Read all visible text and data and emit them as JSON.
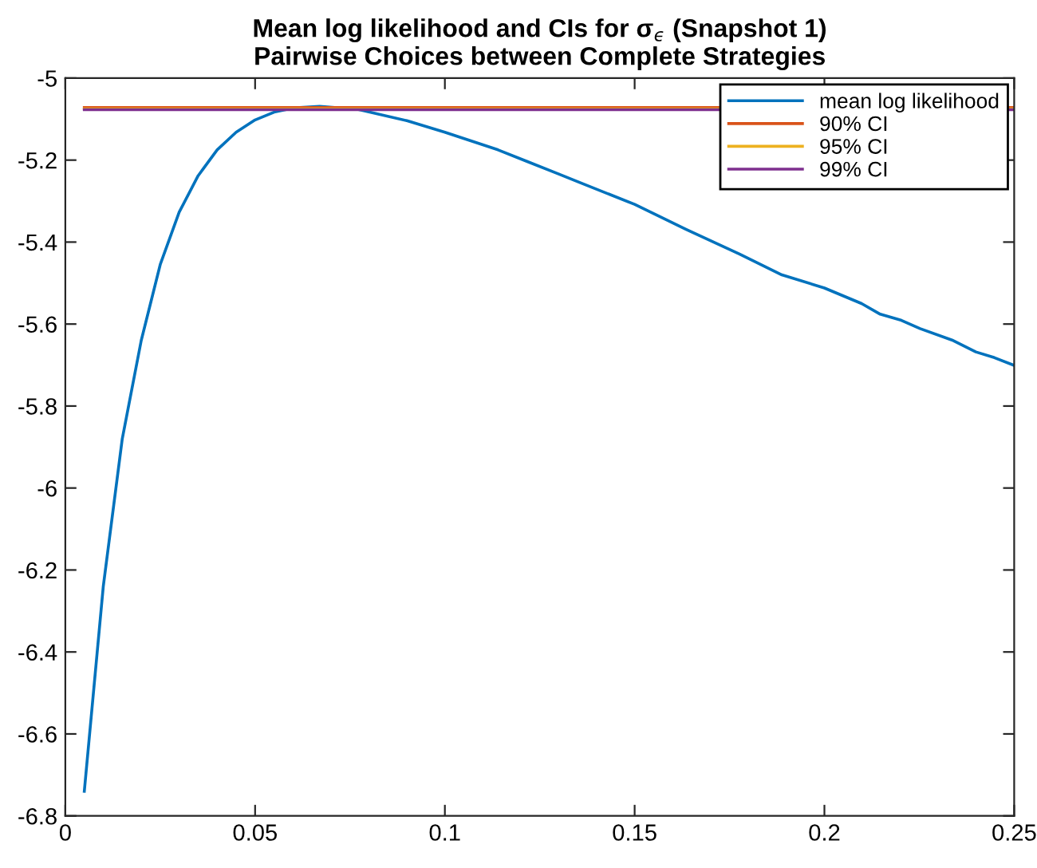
{
  "chart_data": {
    "type": "line",
    "title": "Mean log likelihood and CIs for σ$_{ϵ}$ (Snapshot 1)\nPairwise Choices between Complete Strategies",
    "xlim": [
      0,
      0.25
    ],
    "xticks": [
      0,
      0.05,
      0.1,
      0.15,
      0.2,
      0.25
    ],
    "ylim": [
      -6.8,
      -5
    ],
    "yticks": [
      -6.8,
      -6.6,
      -6.4,
      -6.2,
      -6,
      -5.8,
      -5.6,
      -5.4,
      -5.2,
      -5
    ],
    "grid": false,
    "legend": "top right",
    "series": [
      {
        "name": "mean log likelihood",
        "color": "#0072bd",
        "x": [
          0.005,
          0.01,
          0.015,
          0.02,
          0.025,
          0.03,
          0.035,
          0.04,
          0.045,
          0.05,
          0.055,
          0.06,
          0.067,
          0.077,
          0.09,
          0.1,
          0.114,
          0.1216,
          0.13,
          0.1356,
          0.15,
          0.1636,
          0.1776,
          0.1888,
          0.2,
          0.2098,
          0.2147,
          0.2203,
          0.2252,
          0.2336,
          0.2399,
          0.2448,
          0.25
        ],
        "values": [
          -6.74,
          -6.24,
          -5.88,
          -5.64,
          -5.455,
          -5.327,
          -5.238,
          -5.175,
          -5.132,
          -5.102,
          -5.083,
          -5.073,
          -5.069,
          -5.076,
          -5.104,
          -5.132,
          -5.175,
          -5.203,
          -5.234,
          -5.255,
          -5.308,
          -5.369,
          -5.429,
          -5.48,
          -5.512,
          -5.55,
          -5.576,
          -5.591,
          -5.611,
          -5.639,
          -5.668,
          -5.682,
          -5.701
        ]
      },
      {
        "name": "90% CI",
        "color": "#d95319",
        "x": [
          0.005,
          0.25
        ],
        "values": [
          -5.072,
          -5.072
        ]
      },
      {
        "name": "95% CI",
        "color": "#edb120",
        "x": [
          0.005,
          0.25
        ],
        "values": [
          -5.075,
          -5.075
        ]
      },
      {
        "name": "99% CI",
        "color": "#7e2f8e",
        "x": [
          0.005,
          0.25
        ],
        "values": [
          -5.077,
          -5.077
        ]
      }
    ]
  }
}
